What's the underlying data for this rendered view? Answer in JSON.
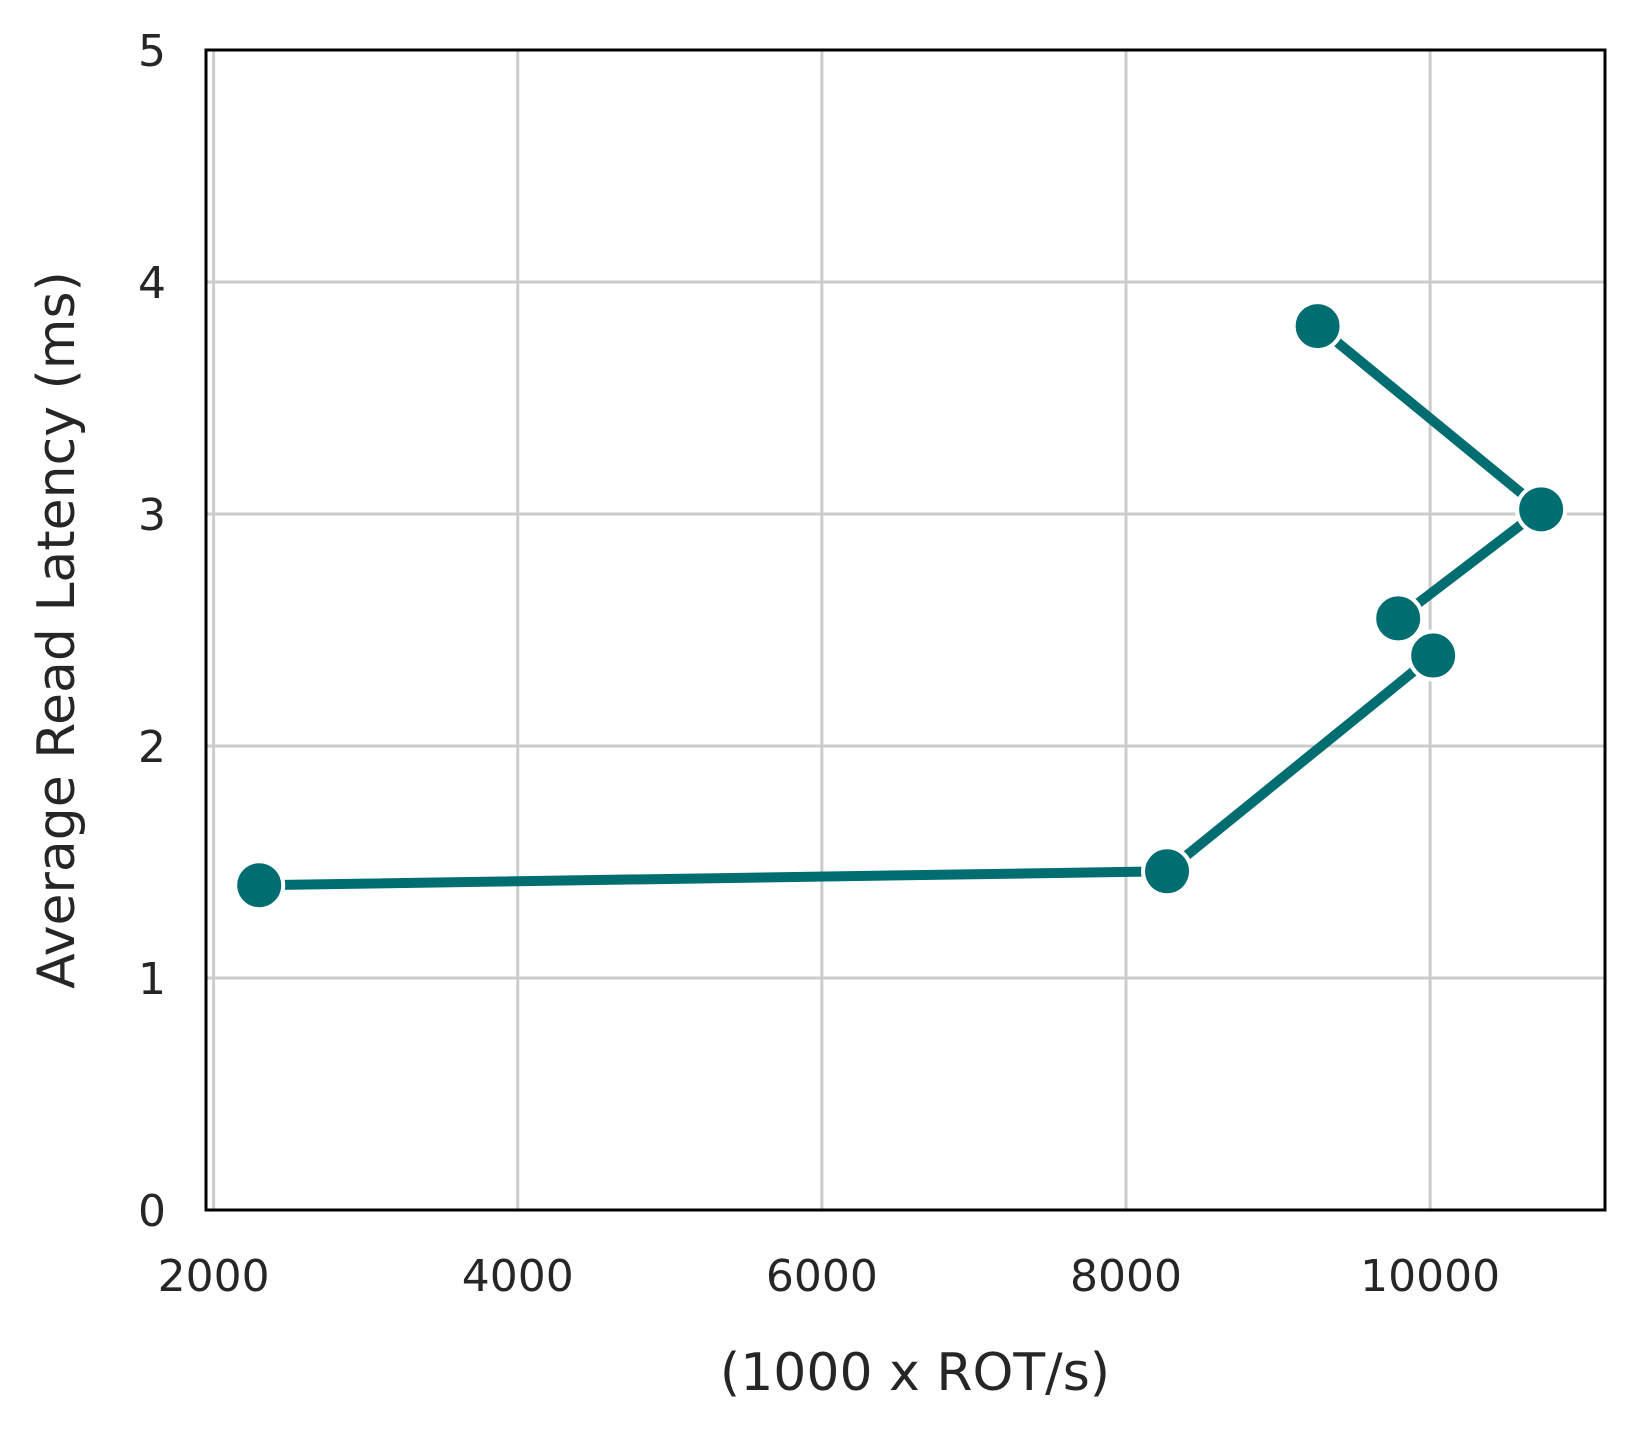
{
  "chart_data": {
    "type": "line",
    "xlabel": "(1000 x ROT/s)",
    "ylabel": "Average Read Latency (ms)",
    "xlim": [
      1950,
      11150
    ],
    "ylim": [
      0,
      5
    ],
    "xticks": [
      "2000",
      "4000",
      "6000",
      "8000",
      "10000"
    ],
    "xtick_values": [
      2000,
      4000,
      6000,
      8000,
      10000
    ],
    "yticks": [
      "0",
      "1",
      "2",
      "3",
      "4",
      "5"
    ],
    "ytick_values": [
      0,
      1,
      2,
      3,
      4,
      5
    ],
    "grid": true,
    "series": [
      {
        "color": "#006d70",
        "marker": "circle",
        "x": [
          2300,
          8270,
          10020,
          9790,
          10730,
          9260
        ],
        "y": [
          1.4,
          1.46,
          2.39,
          2.55,
          3.02,
          3.81
        ]
      }
    ]
  }
}
